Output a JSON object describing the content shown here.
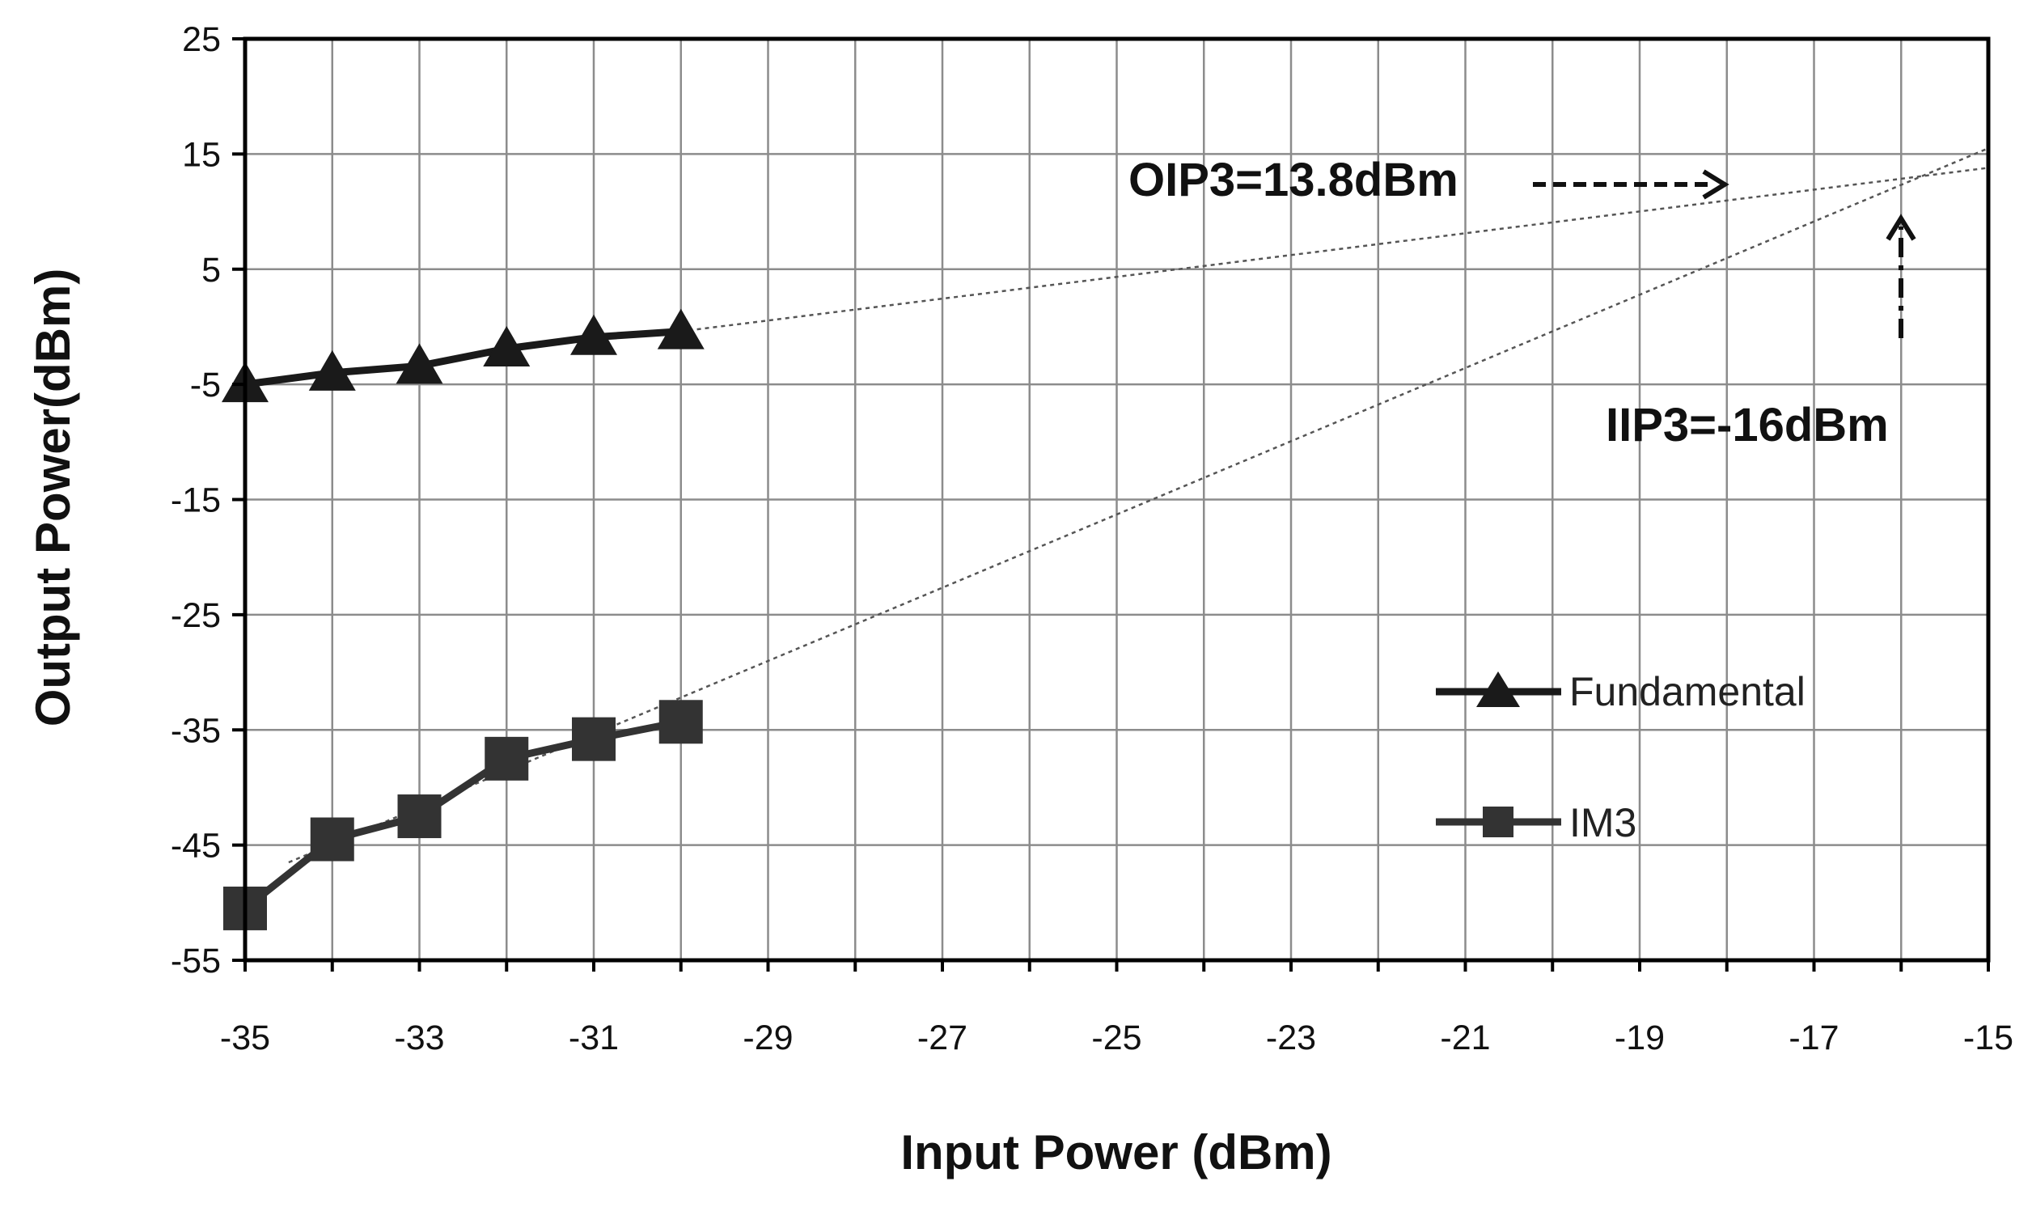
{
  "chart_data": {
    "type": "line",
    "title": "",
    "xlabel": "Input Power (dBm)",
    "ylabel": "Output Power(dBm)",
    "xlim": [
      -35,
      -15
    ],
    "ylim": [
      -55,
      25
    ],
    "x_ticks": [
      -35,
      -33,
      -31,
      -29,
      -27,
      -25,
      -23,
      -21,
      -19,
      -17,
      -15
    ],
    "y_ticks": [
      25,
      15,
      5,
      -5,
      -15,
      -25,
      -35,
      -45,
      -55
    ],
    "x_grid_step": 1,
    "grid": true,
    "legend_position": "right",
    "series": [
      {
        "name": "Fundamental",
        "marker": "triangle",
        "color": "#1a1a1a",
        "x": [
          -35,
          -34,
          -33,
          -32,
          -31,
          -30
        ],
        "values": [
          -5,
          -4,
          -3.4,
          -1.9,
          -0.9,
          -0.4
        ]
      },
      {
        "name": "IM3",
        "marker": "square",
        "color": "#333333",
        "x": [
          -35,
          -34,
          -33,
          -32,
          -31,
          -30
        ],
        "values": [
          -50.5,
          -44.5,
          -42.5,
          -37.5,
          -35.8,
          -34.3
        ]
      }
    ],
    "extrapolations": [
      {
        "name": "Fundamental fit",
        "x": [
          -30,
          -15
        ],
        "values": [
          -0.4,
          13.8
        ]
      },
      {
        "name": "IM3 fit",
        "x": [
          -34.5,
          -15
        ],
        "values": [
          -46.5,
          15.5
        ]
      }
    ],
    "annotations": [
      {
        "text": "OIP3=13.8dBm",
        "x": -16,
        "y": 13.8
      },
      {
        "text": "IIP3=-16dBm",
        "x": -16,
        "y": -8
      }
    ]
  },
  "colors": {
    "axis": "#000000",
    "grid": "#8c8c8c",
    "fit_line": "#555555"
  }
}
